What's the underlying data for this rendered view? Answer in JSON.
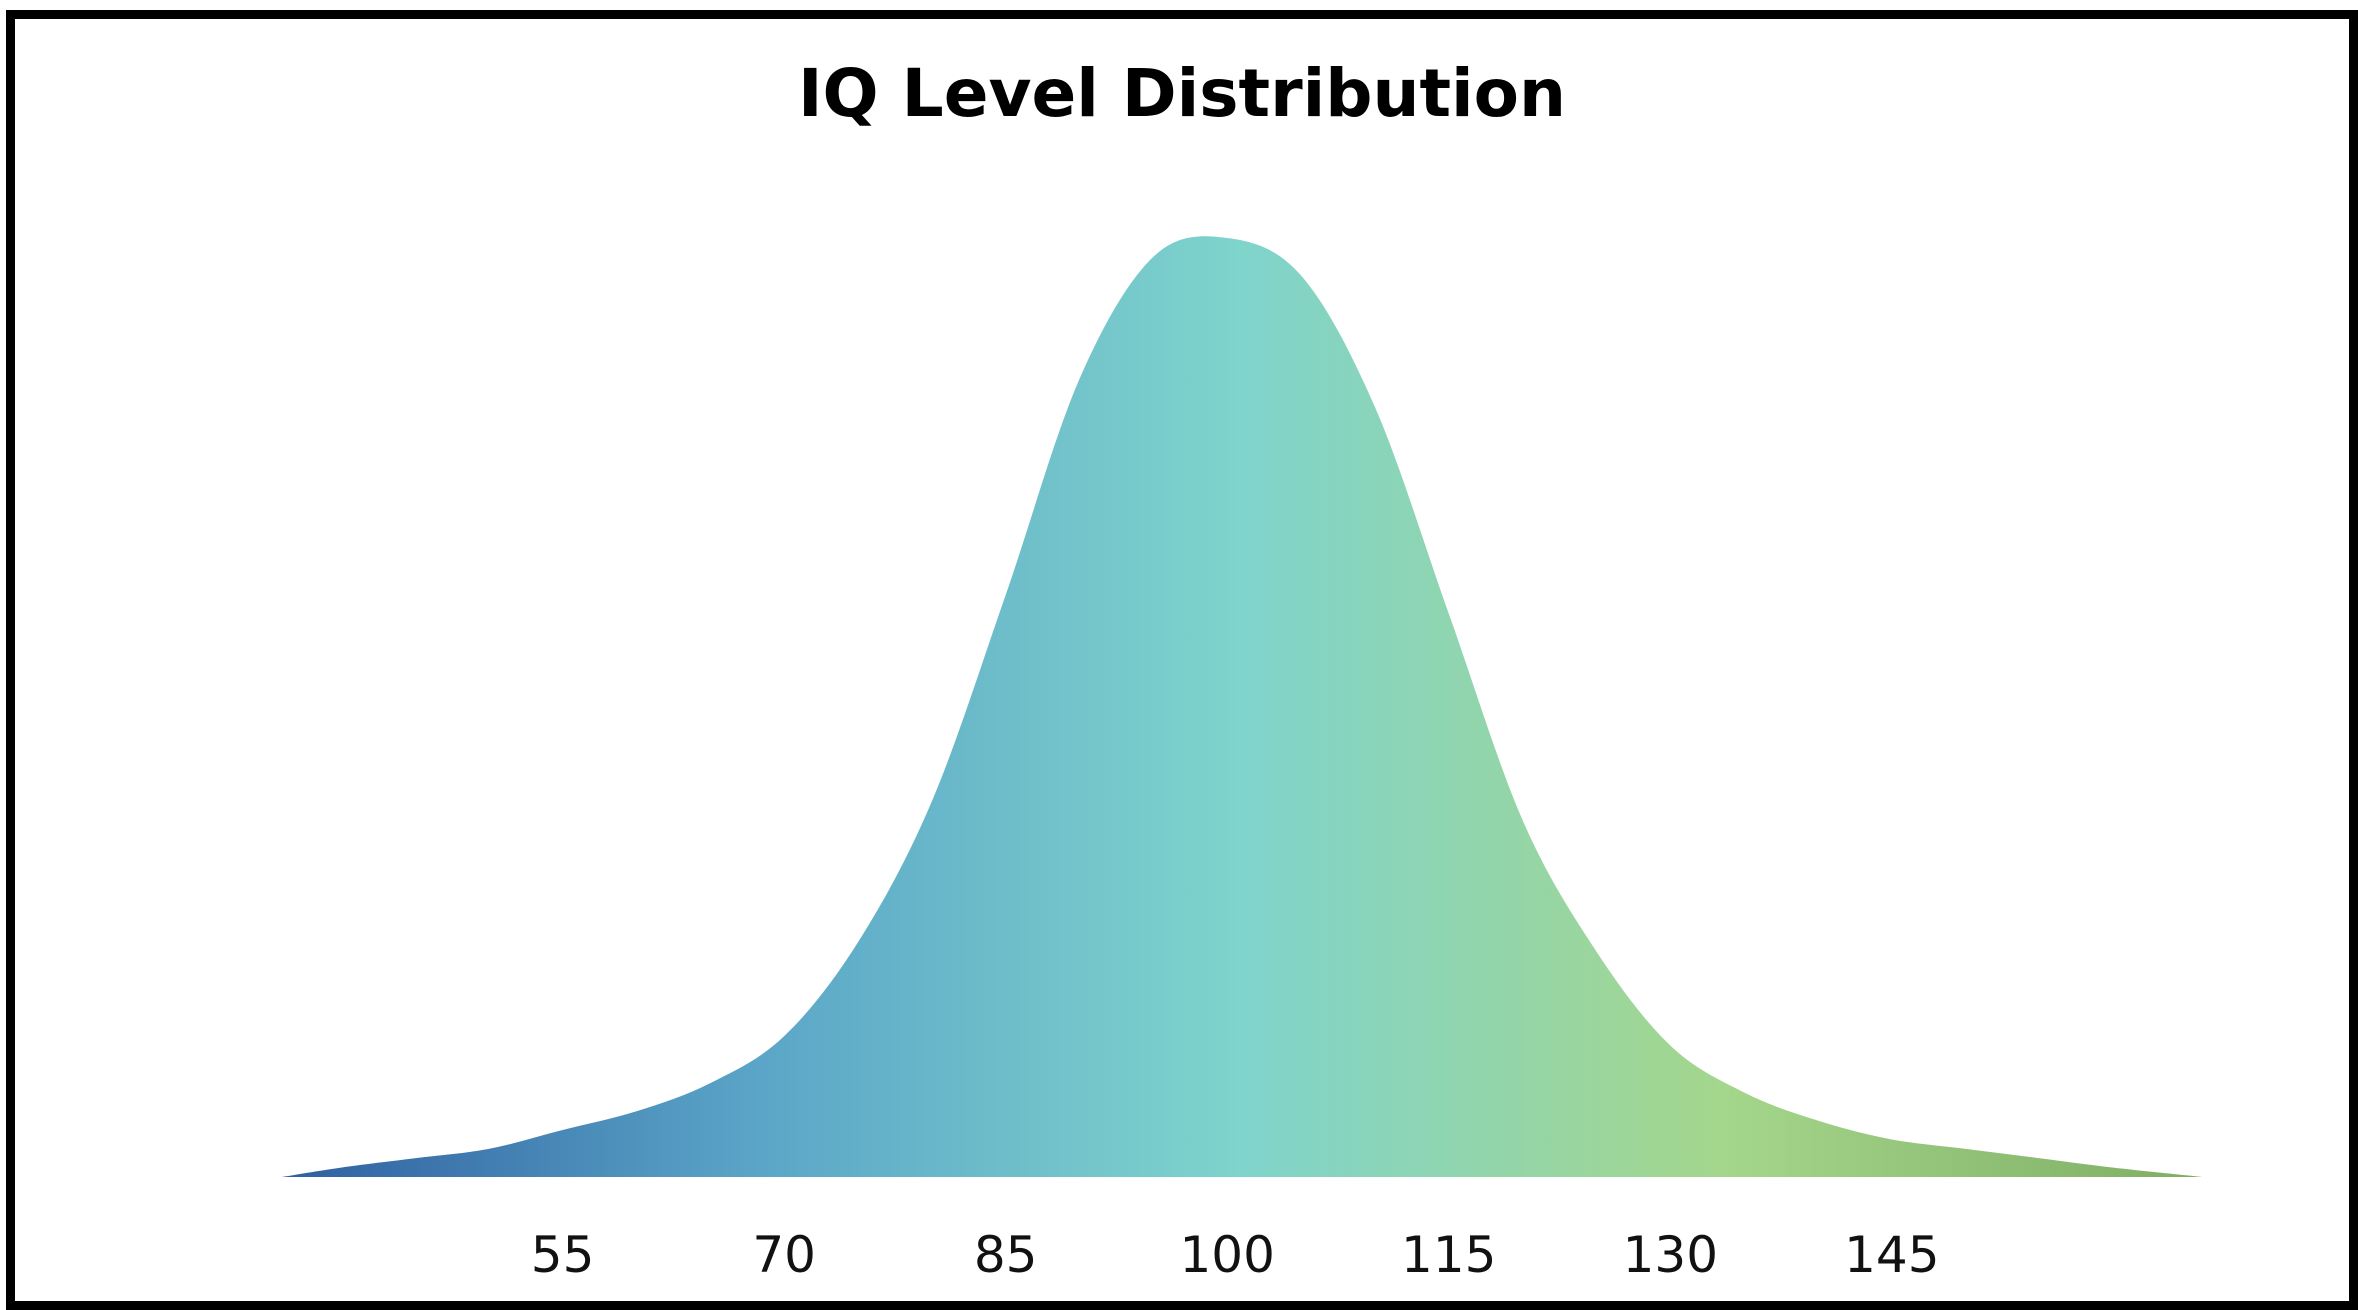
{
  "chart_data": {
    "type": "area",
    "title": "IQ Level Distribution",
    "xlabel": "",
    "ylabel": "",
    "xlim": [
      36,
      166
    ],
    "ylim": [
      0,
      1
    ],
    "x_ticks": [
      55,
      70,
      85,
      100,
      115,
      130,
      145
    ],
    "distribution": {
      "shape": "normal",
      "mean": 100,
      "sd": 15
    },
    "series": [
      {
        "x": [
          36,
          40,
          45,
          50,
          55,
          60,
          65,
          70,
          75,
          80,
          85,
          90,
          95,
          100,
          105,
          110,
          115,
          120,
          125,
          130,
          135,
          140,
          145,
          150,
          155,
          160,
          166
        ],
        "y": [
          0.0,
          0.01,
          0.02,
          0.03,
          0.05,
          0.07,
          0.1,
          0.15,
          0.25,
          0.4,
          0.62,
          0.85,
          0.98,
          1.0,
          0.96,
          0.82,
          0.6,
          0.38,
          0.24,
          0.14,
          0.09,
          0.06,
          0.04,
          0.03,
          0.02,
          0.01,
          0.0
        ]
      }
    ],
    "grid": false,
    "legend": "none",
    "gradient_colors": [
      "#2f5fa0",
      "#5ba6c8",
      "#7fd4cc",
      "#a4d68c",
      "#7fae63"
    ]
  }
}
